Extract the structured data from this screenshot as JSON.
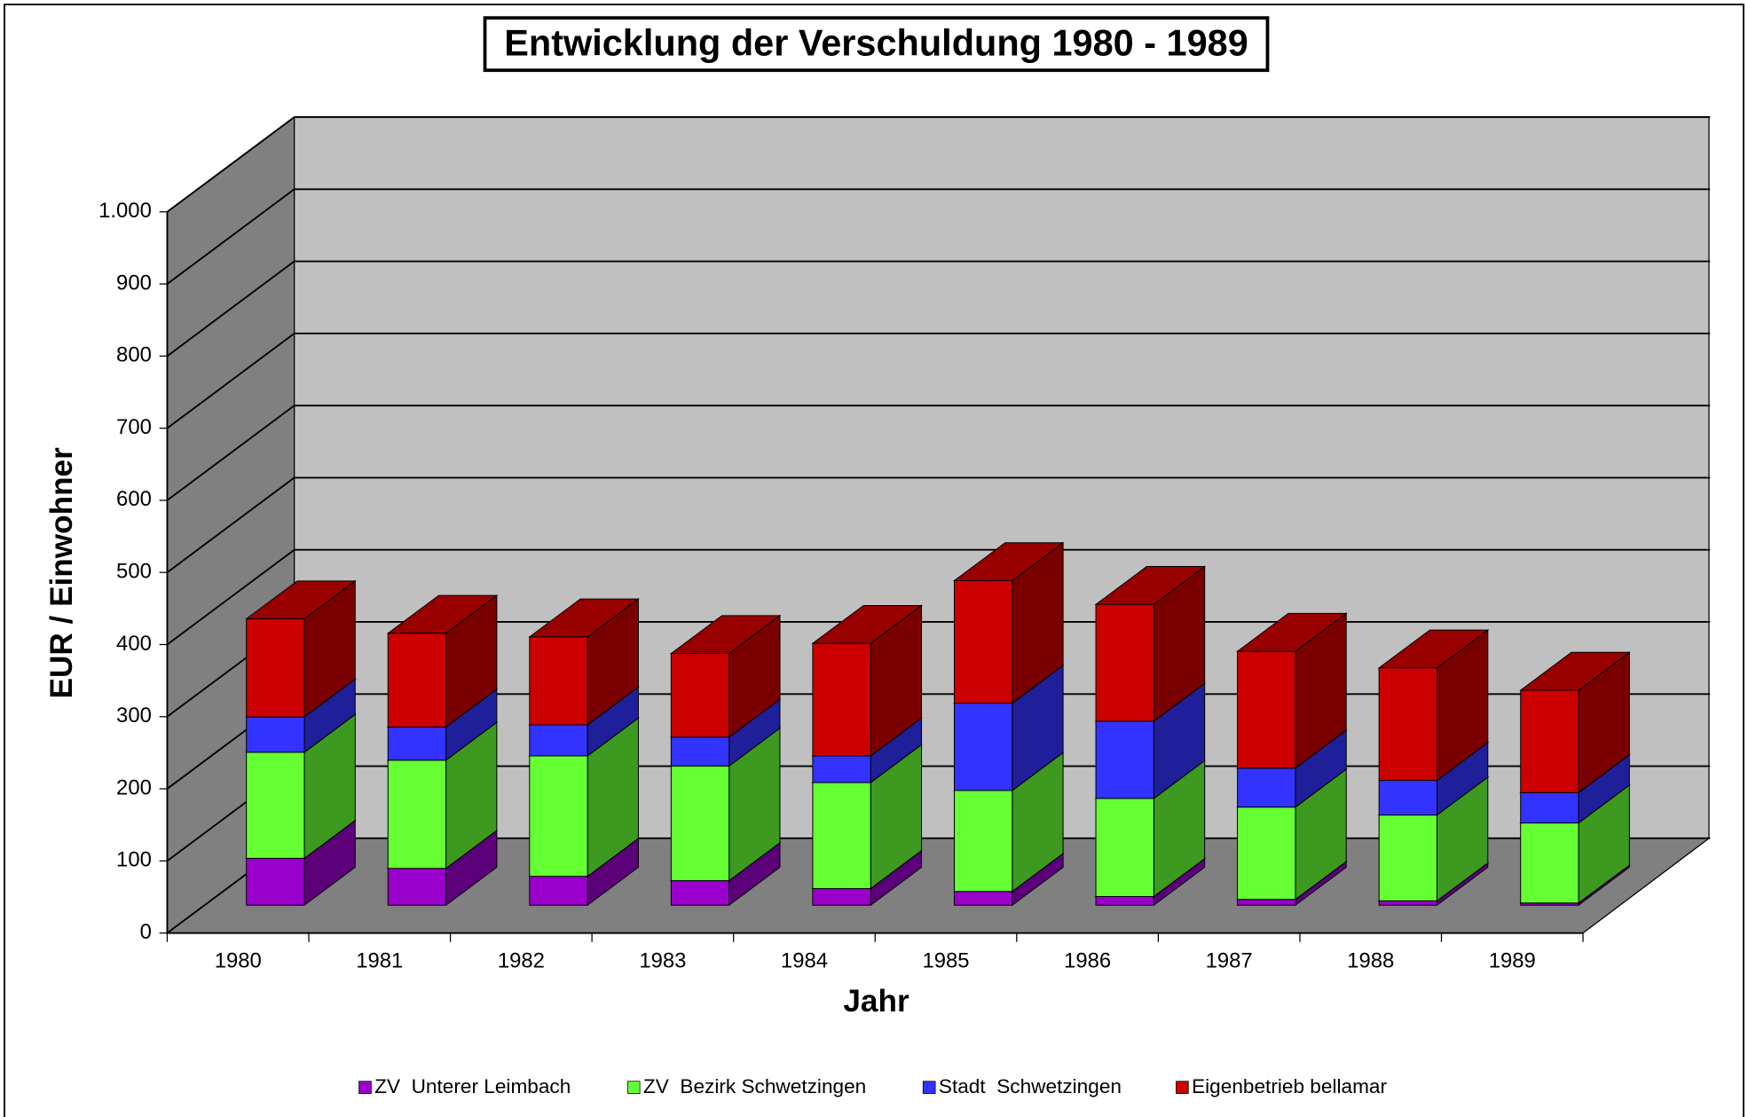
{
  "chart_data": {
    "type": "bar3d_stacked",
    "title": "Entwicklung der Verschuldung 1980 - 1989",
    "x_label": "Jahr",
    "y_label": "EUR / Einwohner",
    "categories": [
      "1980",
      "1981",
      "1982",
      "1983",
      "1984",
      "1985",
      "1986",
      "1987",
      "1988",
      "1989"
    ],
    "series": [
      {
        "name": "ZV  Unterer Leimbach",
        "color": "#9900cc",
        "values": [
          65,
          51,
          40,
          34,
          23,
          19,
          12,
          8,
          6,
          3
        ]
      },
      {
        "name": "ZV  Bezirk Schwetzingen",
        "color": "#66ff33",
        "values": [
          147,
          150,
          167,
          159,
          147,
          140,
          136,
          128,
          119,
          111
        ]
      },
      {
        "name": "Stadt  Schwetzingen",
        "color": "#3333ff",
        "values": [
          49,
          46,
          43,
          40,
          37,
          121,
          107,
          54,
          48,
          42
        ]
      },
      {
        "name": "Eigenbetrieb bellamar",
        "color": "#cc0000",
        "values": [
          136,
          130,
          122,
          116,
          156,
          170,
          162,
          162,
          156,
          142
        ]
      }
    ],
    "ylim": [
      0,
      1000
    ],
    "yticks": [
      0,
      100,
      200,
      300,
      400,
      500,
      600,
      700,
      800,
      900,
      {
        "value": 1000,
        "label": "1.000"
      }
    ],
    "grid": true,
    "legend": "bottom"
  }
}
